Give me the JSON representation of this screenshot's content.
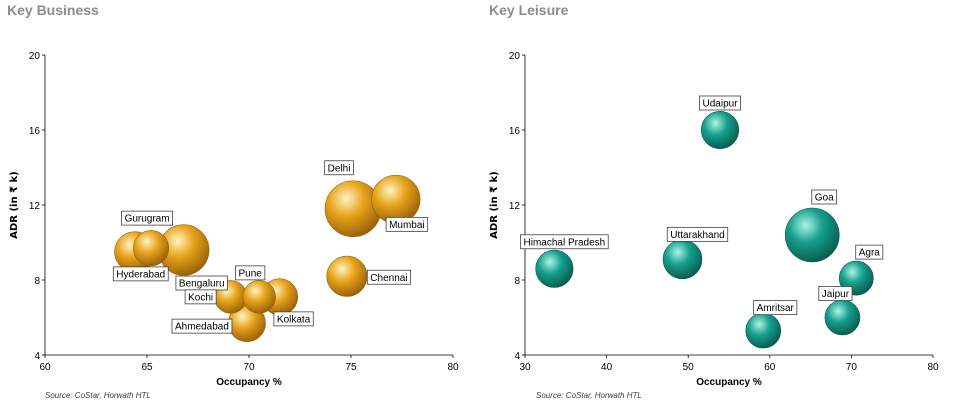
{
  "colors": {
    "business_fill": "#e8a41c",
    "business_dark": "#9a6208",
    "business_light": "#fff4c4",
    "leisure_fill": "#16a08d",
    "leisure_dark": "#0a5c50",
    "leisure_light": "#aef4e6",
    "title": "#8c8c8c",
    "axis": "#000000"
  },
  "chart_data": [
    {
      "type": "scatter",
      "subtype": "bubble",
      "title": "Key Business",
      "xlabel": "Occupancy %",
      "ylabel": "ADR (in ₹ k)",
      "xlim": [
        60,
        80
      ],
      "ylim": [
        4,
        20
      ],
      "xticks": [
        60,
        65,
        70,
        75,
        80
      ],
      "yticks": [
        4,
        8,
        12,
        16,
        20
      ],
      "grid": false,
      "source": "Source: CoStar, Horwath HTL",
      "points": [
        {
          "name": "Delhi",
          "x": 75.1,
          "y": 11.8,
          "size": 1.0
        },
        {
          "name": "Mumbai",
          "x": 77.2,
          "y": 12.3,
          "size": 0.75
        },
        {
          "name": "Chennai",
          "x": 74.8,
          "y": 8.2,
          "size": 0.52
        },
        {
          "name": "Gurugram",
          "x": 65.2,
          "y": 9.7,
          "size": 0.4
        },
        {
          "name": "Hyderabad",
          "x": 64.4,
          "y": 9.5,
          "size": 0.52
        },
        {
          "name": "Bengaluru",
          "x": 66.8,
          "y": 9.6,
          "size": 0.82
        },
        {
          "name": "Kochi",
          "x": 69.1,
          "y": 7.1,
          "size": 0.34
        },
        {
          "name": "Pune",
          "x": 70.5,
          "y": 7.1,
          "size": 0.34
        },
        {
          "name": "Kolkata",
          "x": 71.5,
          "y": 7.1,
          "size": 0.42
        },
        {
          "name": "Ahmedabad",
          "x": 69.9,
          "y": 5.7,
          "size": 0.44
        }
      ]
    },
    {
      "type": "scatter",
      "subtype": "bubble",
      "title": "Key Leisure",
      "xlabel": "Occupancy %",
      "ylabel": "ADR (in ₹ k)",
      "xlim": [
        30,
        80
      ],
      "ylim": [
        4,
        20
      ],
      "xticks": [
        30,
        40,
        50,
        60,
        70,
        80
      ],
      "yticks": [
        4,
        8,
        12,
        16,
        20
      ],
      "grid": false,
      "source": "Source: CoStar, Horwath HTL",
      "points": [
        {
          "name": "Udaipur",
          "x": 53.9,
          "y": 16.0,
          "size": 0.48
        },
        {
          "name": "Goa",
          "x": 65.2,
          "y": 10.4,
          "size": 1.0
        },
        {
          "name": "Agra",
          "x": 70.6,
          "y": 8.1,
          "size": 0.4
        },
        {
          "name": "Himachal Pradesh",
          "x": 33.6,
          "y": 8.6,
          "size": 0.48
        },
        {
          "name": "Uttarakhand",
          "x": 49.3,
          "y": 9.1,
          "size": 0.52
        },
        {
          "name": "Amritsar",
          "x": 59.2,
          "y": 5.3,
          "size": 0.42
        },
        {
          "name": "Jaipur",
          "x": 68.9,
          "y": 6.0,
          "size": 0.42
        }
      ]
    }
  ]
}
